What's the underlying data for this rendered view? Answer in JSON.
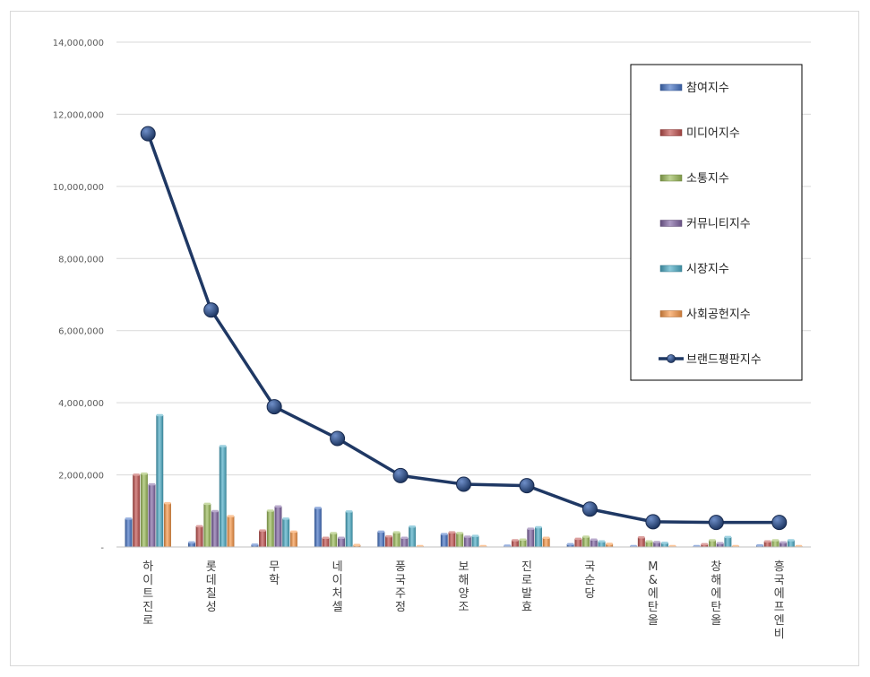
{
  "chart_data": {
    "type": "bar",
    "categories": [
      "하이트진로",
      "롯데칠성",
      "무학",
      "네이처셀",
      "풍국주정",
      "보해양조",
      "진로발효",
      "국순당",
      "M&에탄올",
      "창해에탄올",
      "흥국에프엔비"
    ],
    "y_ticks": [
      "-",
      "2,000,000",
      "4,000,000",
      "6,000,000",
      "8,000,000",
      "10,000,000",
      "12,000,000",
      "14,000,000"
    ],
    "ylim": [
      0,
      14000000
    ],
    "grid": true,
    "legend_position": "top-right",
    "series": [
      {
        "name": "참여지수",
        "kind": "bar",
        "color": "#4472c4",
        "values": [
          780000,
          120000,
          60000,
          1080000,
          420000,
          350000,
          30000,
          70000,
          20000,
          20000,
          40000
        ]
      },
      {
        "name": "미디어지수",
        "kind": "bar",
        "color": "#c0504d",
        "values": [
          2000000,
          570000,
          450000,
          250000,
          290000,
          400000,
          180000,
          220000,
          260000,
          70000,
          150000
        ]
      },
      {
        "name": "소통지수",
        "kind": "bar",
        "color": "#9bbb59",
        "values": [
          2030000,
          1190000,
          1000000,
          380000,
          400000,
          380000,
          200000,
          280000,
          150000,
          180000,
          180000
        ]
      },
      {
        "name": "커뮤니티지수",
        "kind": "bar",
        "color": "#8064a2",
        "values": [
          1730000,
          990000,
          1120000,
          250000,
          250000,
          280000,
          500000,
          200000,
          130000,
          100000,
          120000
        ]
      },
      {
        "name": "시장지수",
        "kind": "bar",
        "color": "#4bacc6",
        "values": [
          3650000,
          2790000,
          780000,
          980000,
          560000,
          300000,
          540000,
          150000,
          110000,
          270000,
          180000
        ]
      },
      {
        "name": "사회공헌지수",
        "kind": "bar",
        "color": "#f79646",
        "values": [
          1210000,
          850000,
          420000,
          50000,
          20000,
          20000,
          250000,
          80000,
          10000,
          10000,
          10000
        ]
      },
      {
        "name": "브랜드평판지수",
        "kind": "line",
        "color": "#1f3864",
        "values": [
          11460000,
          6570000,
          3890000,
          3010000,
          1980000,
          1740000,
          1700000,
          1050000,
          700000,
          680000,
          680000
        ]
      }
    ]
  }
}
